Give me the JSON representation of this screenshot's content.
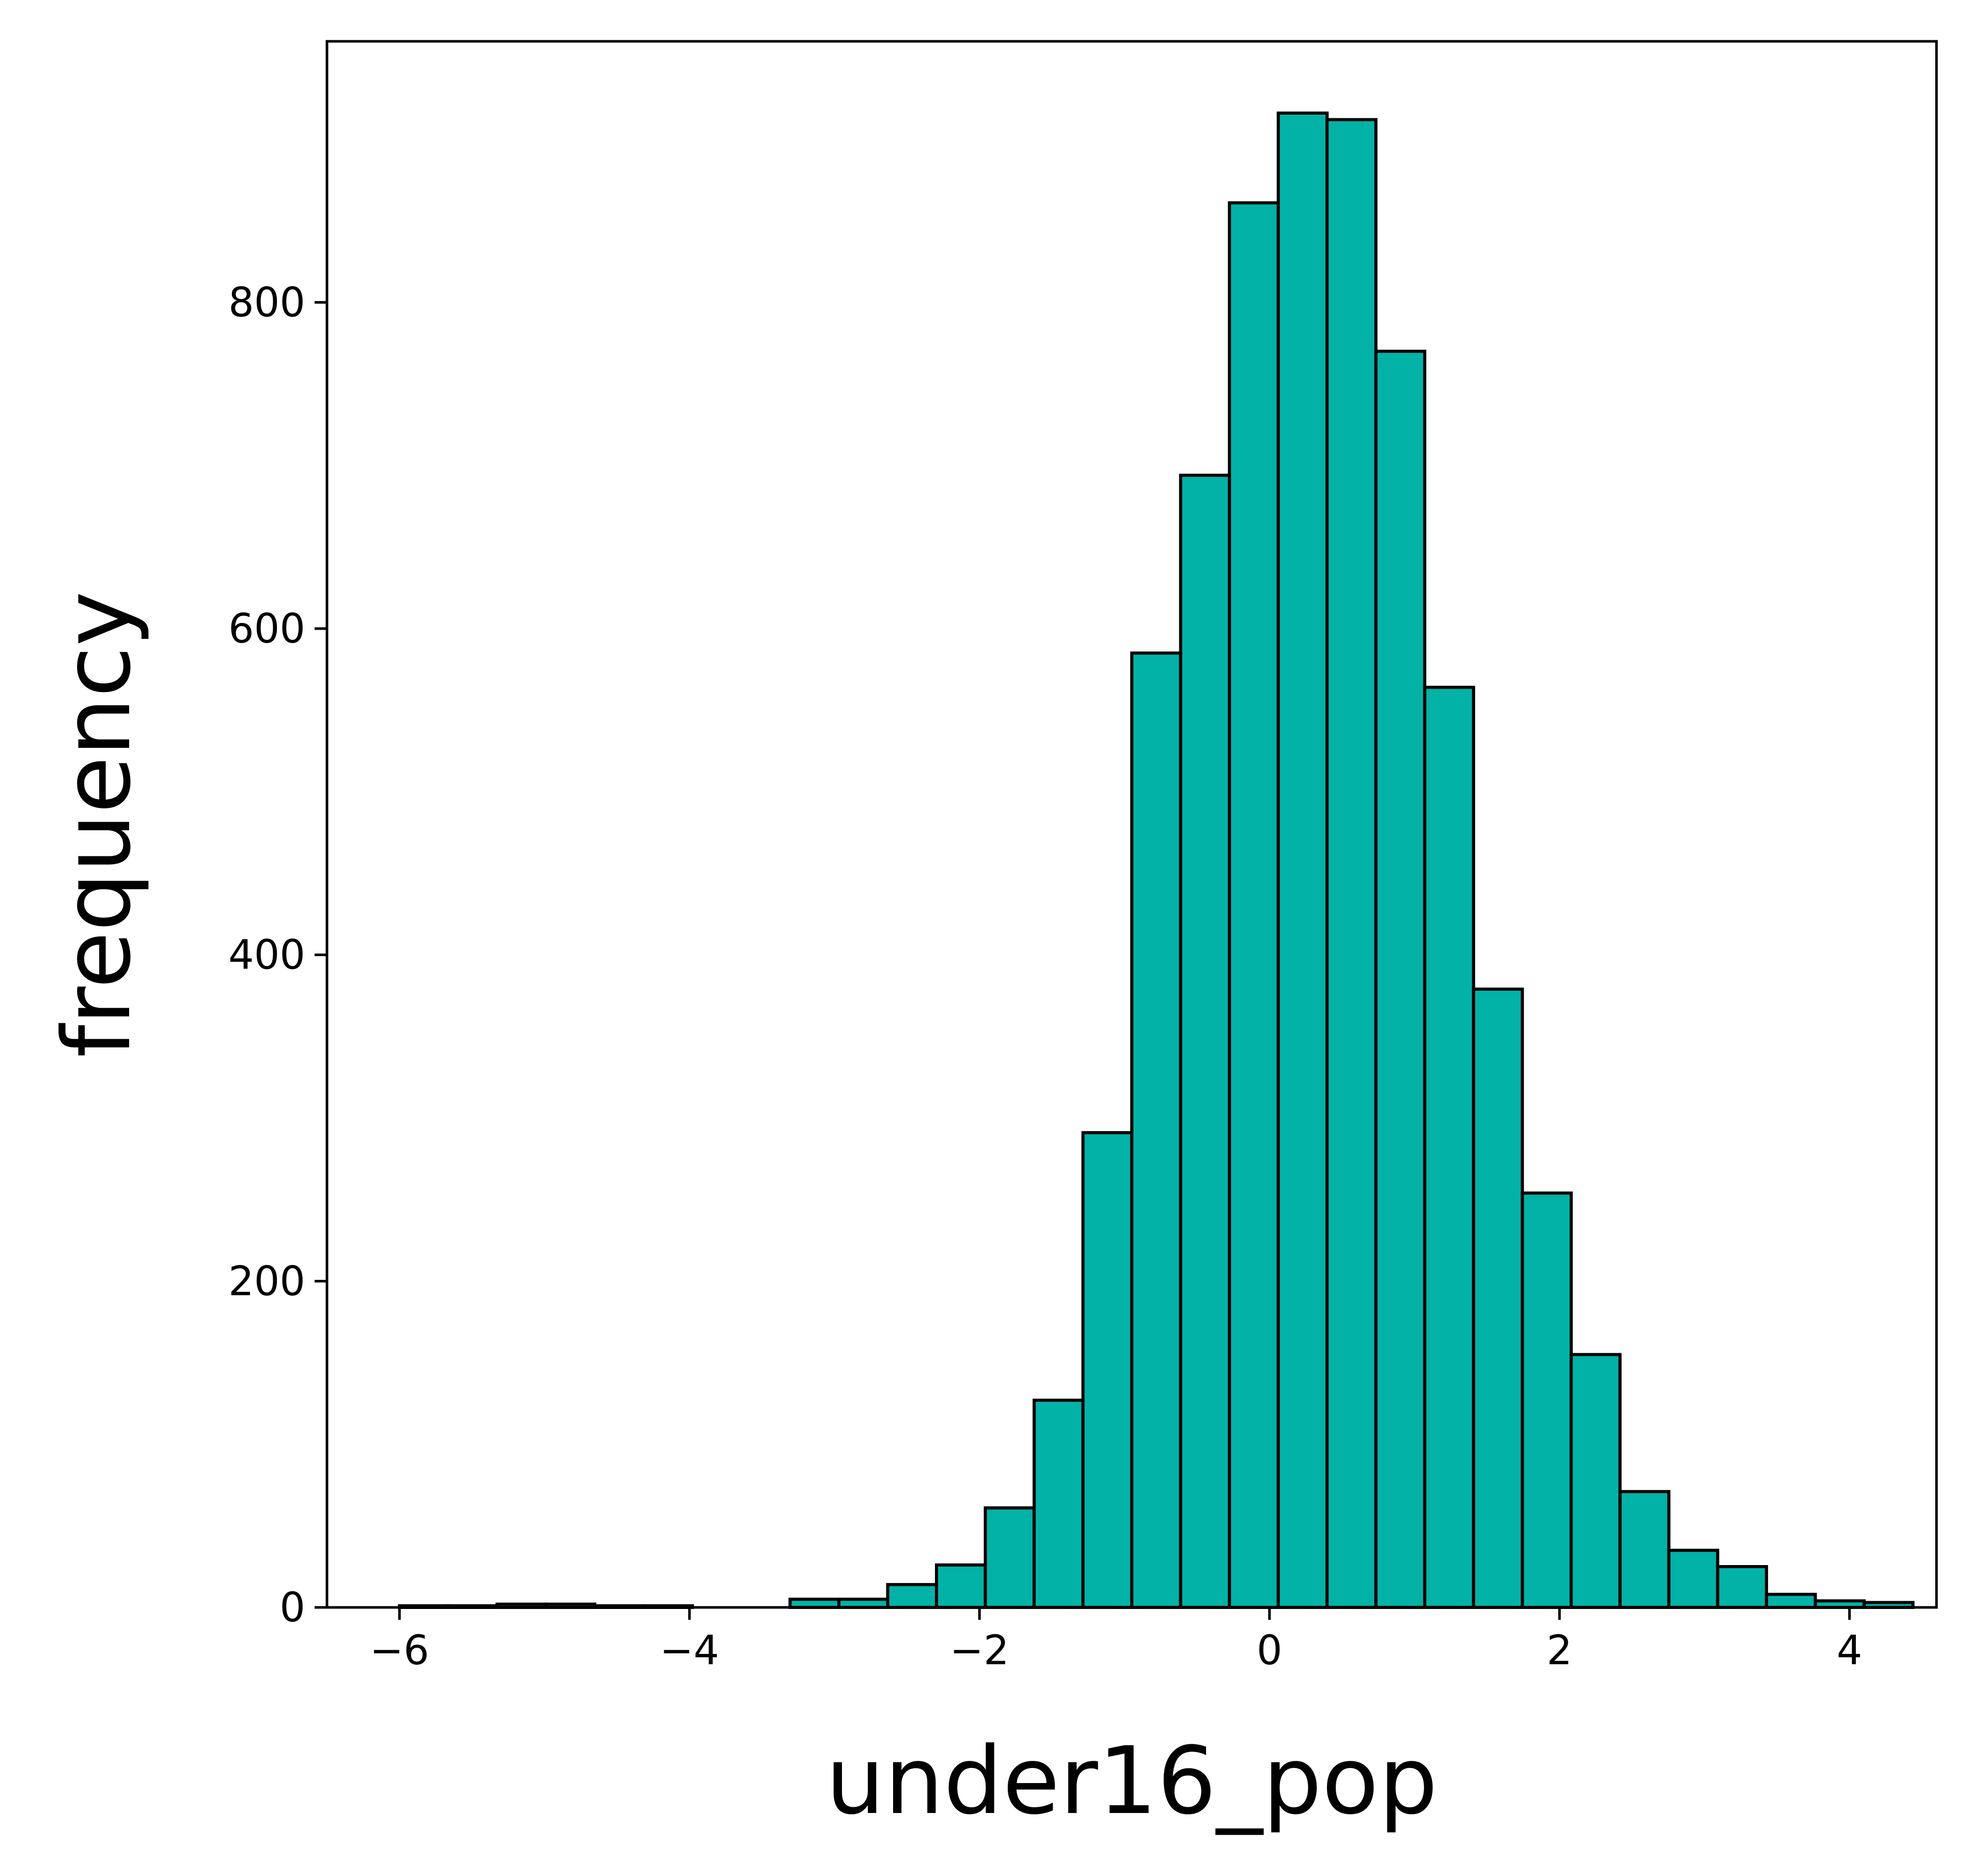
{
  "chart_data": {
    "type": "bar",
    "xlabel": "under16_pop",
    "ylabel": "frequency",
    "xlim": [
      -6.5,
      4.6
    ],
    "ylim": [
      0,
      960
    ],
    "xticks": [
      -6,
      -4,
      -2,
      0,
      2,
      4
    ],
    "xtick_labels": [
      "−6",
      "−4",
      "−2",
      "0",
      "2",
      "4"
    ],
    "yticks": [
      0,
      200,
      400,
      600,
      800
    ],
    "ytick_labels": [
      "0",
      "200",
      "400",
      "600",
      "800"
    ],
    "bin_start": -6.0,
    "bin_width": 0.3367,
    "counts": [
      1,
      1,
      2,
      2,
      1,
      1,
      0,
      0,
      5,
      5,
      14,
      26,
      61,
      127,
      291,
      585,
      694,
      861,
      916,
      912,
      770,
      564,
      379,
      254,
      155,
      71,
      35,
      25,
      8,
      4,
      3
    ],
    "bar_color": "#02b2a6",
    "edge_color": "#000000",
    "grid": false
  }
}
